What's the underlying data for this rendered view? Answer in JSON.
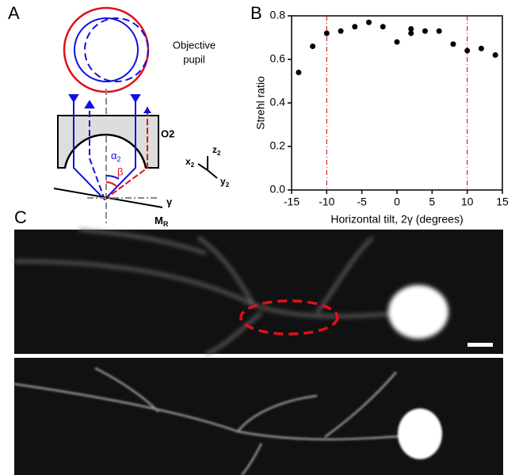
{
  "panels": {
    "a": "A",
    "b": "B",
    "c": "C"
  },
  "diagram": {
    "pupil_line1": "Objective",
    "pupil_line2": "pupil",
    "lens": "O2",
    "alpha": {
      "text": "α",
      "sub": "2"
    },
    "beta": "β",
    "x_axis": {
      "text": "x",
      "sub": "2"
    },
    "z_axis": {
      "text": "z",
      "sub": "2"
    },
    "y_axis": {
      "text": "y",
      "sub": "2"
    },
    "gamma": "γ",
    "mirror": {
      "text": "M",
      "sub": "R"
    }
  },
  "chart_data": {
    "type": "scatter",
    "xlabel": "Horizontal tilt, 2γ (degrees)",
    "ylabel": "Strehl ratio",
    "x": [
      -14,
      -12,
      -10,
      -8,
      -6,
      -4,
      -2,
      0,
      2,
      2,
      4,
      6,
      8,
      10,
      12,
      14
    ],
    "values": [
      0.54,
      0.66,
      0.72,
      0.73,
      0.75,
      0.77,
      0.75,
      0.68,
      0.74,
      0.72,
      0.73,
      0.73,
      0.67,
      0.64,
      0.65,
      0.62
    ],
    "color": "#000000",
    "xlim": [
      -15,
      15
    ],
    "xticks": [
      -15,
      -10,
      -5,
      0,
      5,
      10,
      15
    ],
    "ylim": [
      0,
      0.8
    ],
    "yticks": [
      {
        "value": 0,
        "label": "0.0"
      },
      0.2,
      0.4,
      0.6,
      0.8
    ],
    "vlines": [
      -10,
      10
    ],
    "vline_color": "#cc0000"
  }
}
